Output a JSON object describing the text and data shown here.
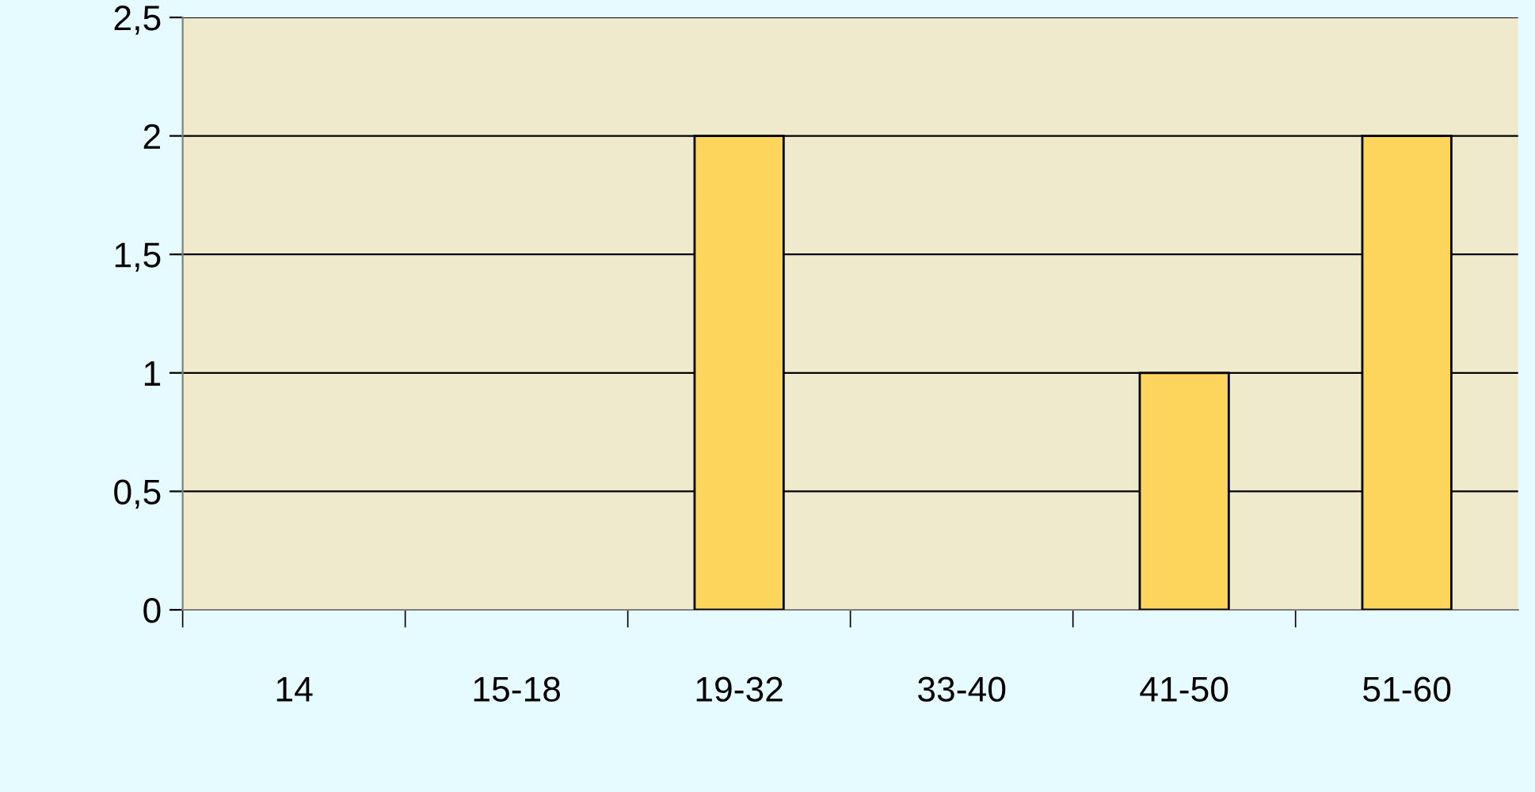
{
  "chart_data": {
    "type": "bar",
    "categories": [
      "14",
      "15-18",
      "19-32",
      "33-40",
      "41-50",
      "51-60"
    ],
    "values": [
      0,
      0,
      2,
      0,
      1,
      2
    ],
    "color": "#fdd55c",
    "ylim": [
      0,
      2.5
    ],
    "yticks": [
      0,
      {
        "value": 0.5,
        "label": "0,5"
      },
      1,
      {
        "value": 1.5,
        "label": "1,5"
      },
      2,
      {
        "value": 2.5,
        "label": "2,5"
      }
    ],
    "grid": "y"
  }
}
